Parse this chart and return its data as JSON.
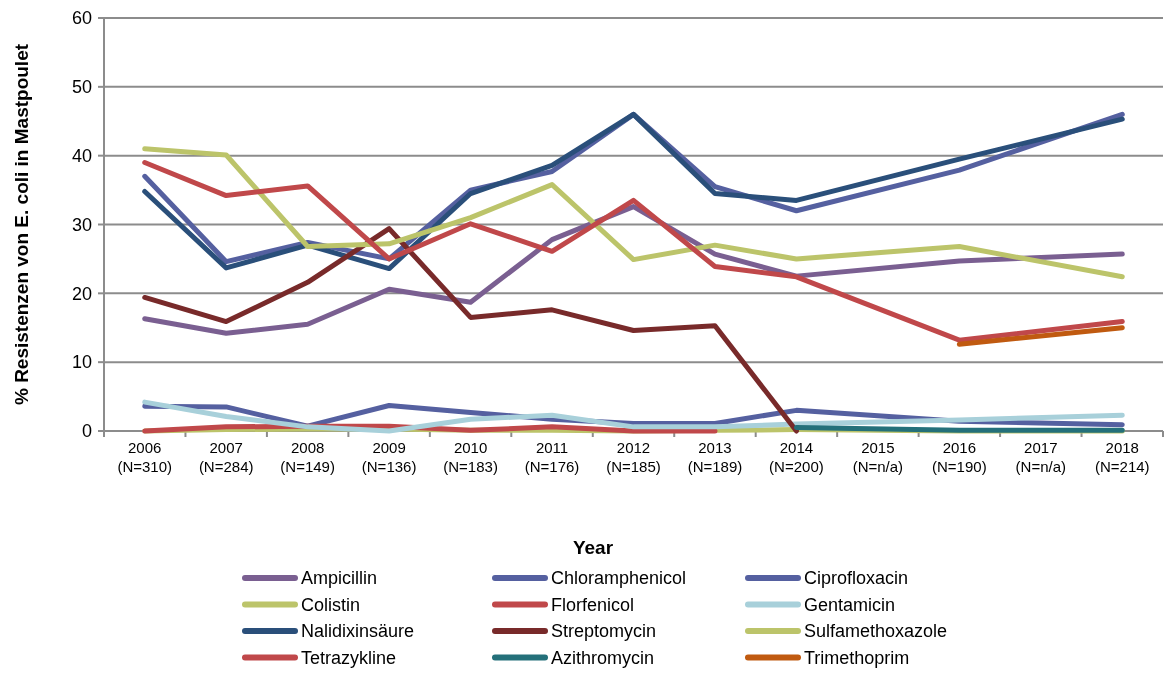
{
  "chart_data": {
    "type": "line",
    "xlabel": "Year",
    "ylabel": "% Resistenzen von E. coli in Mastpoulet",
    "categories": [
      "2006\n(N=310)",
      "2007\n(N=284)",
      "2008\n(N=149)",
      "2009\n(N=136)",
      "2010\n(N=183)",
      "2011\n(N=176)",
      "2012\n(N=185)",
      "2013\n(N=189)",
      "2014\n(N=200)",
      "2015\n(N=n/a)",
      "2016\n(N=190)",
      "2017\n(N=n/a)",
      "2018\n(N=214)"
    ],
    "series": [
      {
        "name": "Ampicillin",
        "color": "#7a5f91",
        "values": [
          16.3,
          14.2,
          15.5,
          20.6,
          18.7,
          27.8,
          32.6,
          25.7,
          22.5,
          null,
          24.7,
          null,
          25.7
        ]
      },
      {
        "name": "Chloramphenicol",
        "color": "#5560a0",
        "values": [
          3.6,
          3.5,
          0.7,
          3.7,
          2.7,
          1.7,
          1.1,
          1.1,
          3.0,
          null,
          1.4,
          null,
          0.9
        ]
      },
      {
        "name": "Ciprofloxacin",
        "color": "#5560a0",
        "values": [
          37.0,
          24.6,
          27.4,
          25.0,
          35.0,
          37.7,
          46.0,
          35.5,
          32.0,
          null,
          37.9,
          null,
          46.0
        ]
      },
      {
        "name": "Colistin",
        "color": "#bcc46a",
        "values": [
          0,
          0.2,
          0.3,
          0.3,
          0.1,
          0.1,
          0,
          0.1,
          0.2,
          null,
          0,
          null,
          0
        ]
      },
      {
        "name": "Florfenicol",
        "color": "#c0484a",
        "values": [
          0,
          0.6,
          0.7,
          0.7,
          0.1,
          0.6,
          0,
          0,
          null,
          null,
          null,
          null,
          null
        ]
      },
      {
        "name": "Gentamicin",
        "color": "#a8d0da",
        "values": [
          4.2,
          2.1,
          0.6,
          0,
          1.7,
          2.3,
          0.6,
          0.6,
          1.0,
          null,
          1.6,
          null,
          2.3
        ]
      },
      {
        "name": "Nalidixinsäure",
        "color": "#2a4f7a",
        "values": [
          34.8,
          23.7,
          27.0,
          23.6,
          34.5,
          38.6,
          46.0,
          34.5,
          33.5,
          null,
          39.5,
          null,
          45.3
        ]
      },
      {
        "name": "Streptomycin",
        "color": "#782a2a",
        "values": [
          19.4,
          15.9,
          21.6,
          29.4,
          16.5,
          17.6,
          14.6,
          15.3,
          0,
          null,
          null,
          null,
          null
        ]
      },
      {
        "name": "Sulfamethoxazole",
        "color": "#bcc46a",
        "values": [
          41.0,
          40.1,
          26.8,
          27.2,
          31.0,
          35.8,
          24.9,
          27.0,
          25.0,
          null,
          26.8,
          null,
          22.4
        ]
      },
      {
        "name": "Tetrazykline",
        "color": "#c0484a",
        "values": [
          39.0,
          34.2,
          35.6,
          25.0,
          30.1,
          26.1,
          33.5,
          23.9,
          22.4,
          null,
          13.2,
          null,
          15.9
        ]
      },
      {
        "name": "Azithromycin",
        "color": "#24707a",
        "values": [
          null,
          null,
          null,
          null,
          null,
          null,
          null,
          null,
          0.5,
          null,
          0.1,
          null,
          0.1
        ]
      },
      {
        "name": "Trimethoprim",
        "color": "#c05a10",
        "values": [
          null,
          null,
          null,
          null,
          null,
          null,
          null,
          null,
          null,
          null,
          12.6,
          null,
          15.0
        ]
      }
    ],
    "ylim": [
      0,
      60
    ],
    "yticks": [
      0,
      10,
      20,
      30,
      40,
      50,
      60
    ],
    "grid": "y",
    "legend": "bottom",
    "line_style": "solid",
    "marker": "none"
  }
}
